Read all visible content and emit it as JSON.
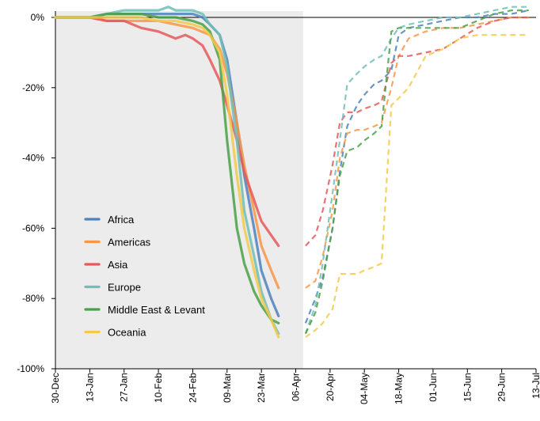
{
  "chart_data": {
    "type": "line",
    "title": "",
    "xlabel": "",
    "ylabel": "",
    "ylim": [
      -100,
      2
    ],
    "y_ticks": [
      0,
      -20,
      -40,
      -60,
      -80,
      -100
    ],
    "y_tick_labels": [
      "0%",
      "-20%",
      "-40%",
      "-60%",
      "-80%",
      "-100%"
    ],
    "x_ticks": [
      0,
      14,
      28,
      42,
      56,
      70,
      84,
      98,
      112,
      126,
      140,
      154,
      168,
      182,
      196
    ],
    "x_tick_labels": [
      "30-Dec",
      "13-Jan",
      "27-Jan",
      "10-Feb",
      "24-Feb",
      "09-Mar",
      "23-Mar",
      "06-Apr",
      "20-Apr",
      "04-May",
      "18-May",
      "01-Jun",
      "15-Jun",
      "29-Jun",
      "13-Jul"
    ],
    "x_unit": "days from 30-Dec",
    "xlim": [
      0,
      196
    ],
    "shaded_region": [
      0,
      101
    ],
    "grid": false,
    "legend_position": "lower-left",
    "series": [
      {
        "name": "Africa",
        "color": "#4f81bd",
        "solid": [
          [
            0,
            0
          ],
          [
            14,
            0
          ],
          [
            21,
            1
          ],
          [
            35,
            1
          ],
          [
            42,
            1
          ],
          [
            49,
            1
          ],
          [
            56,
            1
          ],
          [
            60,
            0
          ],
          [
            63,
            -2
          ],
          [
            67,
            -5
          ],
          [
            70,
            -12
          ],
          [
            74,
            -30
          ],
          [
            77,
            -45
          ],
          [
            81,
            -60
          ],
          [
            84,
            -72
          ],
          [
            88,
            -80
          ],
          [
            91,
            -85
          ]
        ],
        "dashed": [
          [
            102,
            -87
          ],
          [
            106,
            -80
          ],
          [
            109,
            -74
          ],
          [
            113,
            -60
          ],
          [
            116,
            -44
          ],
          [
            119,
            -31
          ],
          [
            123,
            -25
          ],
          [
            126,
            -22
          ],
          [
            130,
            -19
          ],
          [
            133,
            -18
          ],
          [
            137,
            -15
          ],
          [
            140,
            -5
          ],
          [
            144,
            -3
          ],
          [
            151,
            -2
          ],
          [
            158,
            -1
          ],
          [
            165,
            0
          ],
          [
            172,
            0
          ],
          [
            179,
            1
          ],
          [
            186,
            1
          ],
          [
            193,
            2
          ]
        ]
      },
      {
        "name": "Americas",
        "color": "#f79646",
        "solid": [
          [
            0,
            0
          ],
          [
            14,
            0
          ],
          [
            21,
            -1
          ],
          [
            28,
            -1
          ],
          [
            35,
            -1
          ],
          [
            42,
            -1
          ],
          [
            49,
            -2
          ],
          [
            56,
            -3
          ],
          [
            63,
            -5
          ],
          [
            67,
            -9
          ],
          [
            70,
            -16
          ],
          [
            74,
            -30
          ],
          [
            77,
            -42
          ],
          [
            81,
            -55
          ],
          [
            84,
            -65
          ],
          [
            88,
            -72
          ],
          [
            91,
            -77
          ]
        ],
        "dashed": [
          [
            102,
            -77
          ],
          [
            106,
            -75
          ],
          [
            109,
            -68
          ],
          [
            113,
            -55
          ],
          [
            116,
            -40
          ],
          [
            119,
            -33
          ],
          [
            123,
            -32
          ],
          [
            126,
            -32
          ],
          [
            130,
            -31
          ],
          [
            133,
            -30
          ],
          [
            137,
            -20
          ],
          [
            140,
            -11
          ],
          [
            144,
            -6
          ],
          [
            151,
            -4
          ],
          [
            158,
            -3
          ],
          [
            165,
            -3
          ],
          [
            172,
            -2
          ],
          [
            179,
            -1
          ],
          [
            186,
            0
          ],
          [
            193,
            0
          ]
        ]
      },
      {
        "name": "Asia",
        "color": "#e8585a",
        "solid": [
          [
            0,
            0
          ],
          [
            14,
            0
          ],
          [
            21,
            -1
          ],
          [
            28,
            -1
          ],
          [
            35,
            -3
          ],
          [
            42,
            -4
          ],
          [
            49,
            -6
          ],
          [
            53,
            -5
          ],
          [
            56,
            -6
          ],
          [
            60,
            -8
          ],
          [
            63,
            -12
          ],
          [
            67,
            -18
          ],
          [
            70,
            -25
          ],
          [
            74,
            -35
          ],
          [
            77,
            -44
          ],
          [
            81,
            -52
          ],
          [
            84,
            -58
          ],
          [
            88,
            -62
          ],
          [
            91,
            -65
          ]
        ],
        "dashed": [
          [
            102,
            -65
          ],
          [
            106,
            -62
          ],
          [
            109,
            -55
          ],
          [
            113,
            -42
          ],
          [
            116,
            -30
          ],
          [
            119,
            -27
          ],
          [
            123,
            -27
          ],
          [
            126,
            -26
          ],
          [
            130,
            -25
          ],
          [
            133,
            -24
          ],
          [
            137,
            -13
          ],
          [
            140,
            -11
          ],
          [
            144,
            -11
          ],
          [
            151,
            -10
          ],
          [
            158,
            -9
          ],
          [
            165,
            -6
          ],
          [
            172,
            -3
          ],
          [
            179,
            -1
          ],
          [
            186,
            0
          ],
          [
            193,
            0
          ]
        ]
      },
      {
        "name": "Europe",
        "color": "#6fbfb6",
        "solid": [
          [
            0,
            0
          ],
          [
            14,
            0
          ],
          [
            21,
            1
          ],
          [
            28,
            2
          ],
          [
            35,
            2
          ],
          [
            42,
            2
          ],
          [
            46,
            3
          ],
          [
            49,
            2
          ],
          [
            56,
            2
          ],
          [
            60,
            1
          ],
          [
            63,
            -2
          ],
          [
            67,
            -5
          ],
          [
            70,
            -14
          ],
          [
            74,
            -35
          ],
          [
            77,
            -55
          ],
          [
            81,
            -68
          ],
          [
            84,
            -78
          ],
          [
            88,
            -86
          ],
          [
            91,
            -90
          ]
        ],
        "dashed": [
          [
            102,
            -90
          ],
          [
            106,
            -82
          ],
          [
            109,
            -70
          ],
          [
            113,
            -50
          ],
          [
            116,
            -35
          ],
          [
            119,
            -19
          ],
          [
            123,
            -16
          ],
          [
            126,
            -14
          ],
          [
            130,
            -12
          ],
          [
            133,
            -11
          ],
          [
            137,
            -6
          ],
          [
            140,
            -3
          ],
          [
            144,
            -2
          ],
          [
            151,
            -1
          ],
          [
            158,
            0
          ],
          [
            165,
            0
          ],
          [
            172,
            1
          ],
          [
            179,
            2
          ],
          [
            186,
            3
          ],
          [
            193,
            3
          ]
        ]
      },
      {
        "name": "Middle East & Levant",
        "color": "#4aa146",
        "solid": [
          [
            0,
            0
          ],
          [
            14,
            0
          ],
          [
            21,
            1
          ],
          [
            28,
            1
          ],
          [
            35,
            1
          ],
          [
            42,
            0
          ],
          [
            49,
            0
          ],
          [
            56,
            -1
          ],
          [
            60,
            -2
          ],
          [
            63,
            -4
          ],
          [
            67,
            -12
          ],
          [
            70,
            -35
          ],
          [
            74,
            -60
          ],
          [
            77,
            -70
          ],
          [
            81,
            -78
          ],
          [
            84,
            -82
          ],
          [
            88,
            -86
          ],
          [
            91,
            -87
          ]
        ],
        "dashed": [
          [
            102,
            -90
          ],
          [
            106,
            -84
          ],
          [
            109,
            -75
          ],
          [
            113,
            -60
          ],
          [
            116,
            -45
          ],
          [
            119,
            -38
          ],
          [
            123,
            -37
          ],
          [
            126,
            -35
          ],
          [
            130,
            -33
          ],
          [
            133,
            -31
          ],
          [
            137,
            -4
          ],
          [
            140,
            -3
          ],
          [
            144,
            -3
          ],
          [
            151,
            -3
          ],
          [
            158,
            -3
          ],
          [
            165,
            -3
          ],
          [
            172,
            -1
          ],
          [
            179,
            1
          ],
          [
            186,
            2
          ],
          [
            193,
            2
          ]
        ]
      },
      {
        "name": "Oceania",
        "color": "#f4c94a",
        "solid": [
          [
            0,
            0
          ],
          [
            14,
            0
          ],
          [
            21,
            0
          ],
          [
            28,
            0
          ],
          [
            35,
            0
          ],
          [
            42,
            -1
          ],
          [
            49,
            -1
          ],
          [
            56,
            -2
          ],
          [
            60,
            -3
          ],
          [
            63,
            -5
          ],
          [
            67,
            -10
          ],
          [
            70,
            -22
          ],
          [
            74,
            -45
          ],
          [
            77,
            -60
          ],
          [
            81,
            -72
          ],
          [
            84,
            -80
          ],
          [
            88,
            -86
          ],
          [
            91,
            -91
          ]
        ],
        "dashed": [
          [
            102,
            -91
          ],
          [
            106,
            -89
          ],
          [
            109,
            -87
          ],
          [
            113,
            -83
          ],
          [
            116,
            -73
          ],
          [
            119,
            -73
          ],
          [
            123,
            -73
          ],
          [
            126,
            -72
          ],
          [
            130,
            -71
          ],
          [
            133,
            -70
          ],
          [
            137,
            -25
          ],
          [
            140,
            -23
          ],
          [
            144,
            -20
          ],
          [
            151,
            -11
          ],
          [
            158,
            -9
          ],
          [
            165,
            -6
          ],
          [
            172,
            -5
          ],
          [
            179,
            -5
          ],
          [
            186,
            -5
          ],
          [
            193,
            -5
          ]
        ]
      }
    ]
  }
}
